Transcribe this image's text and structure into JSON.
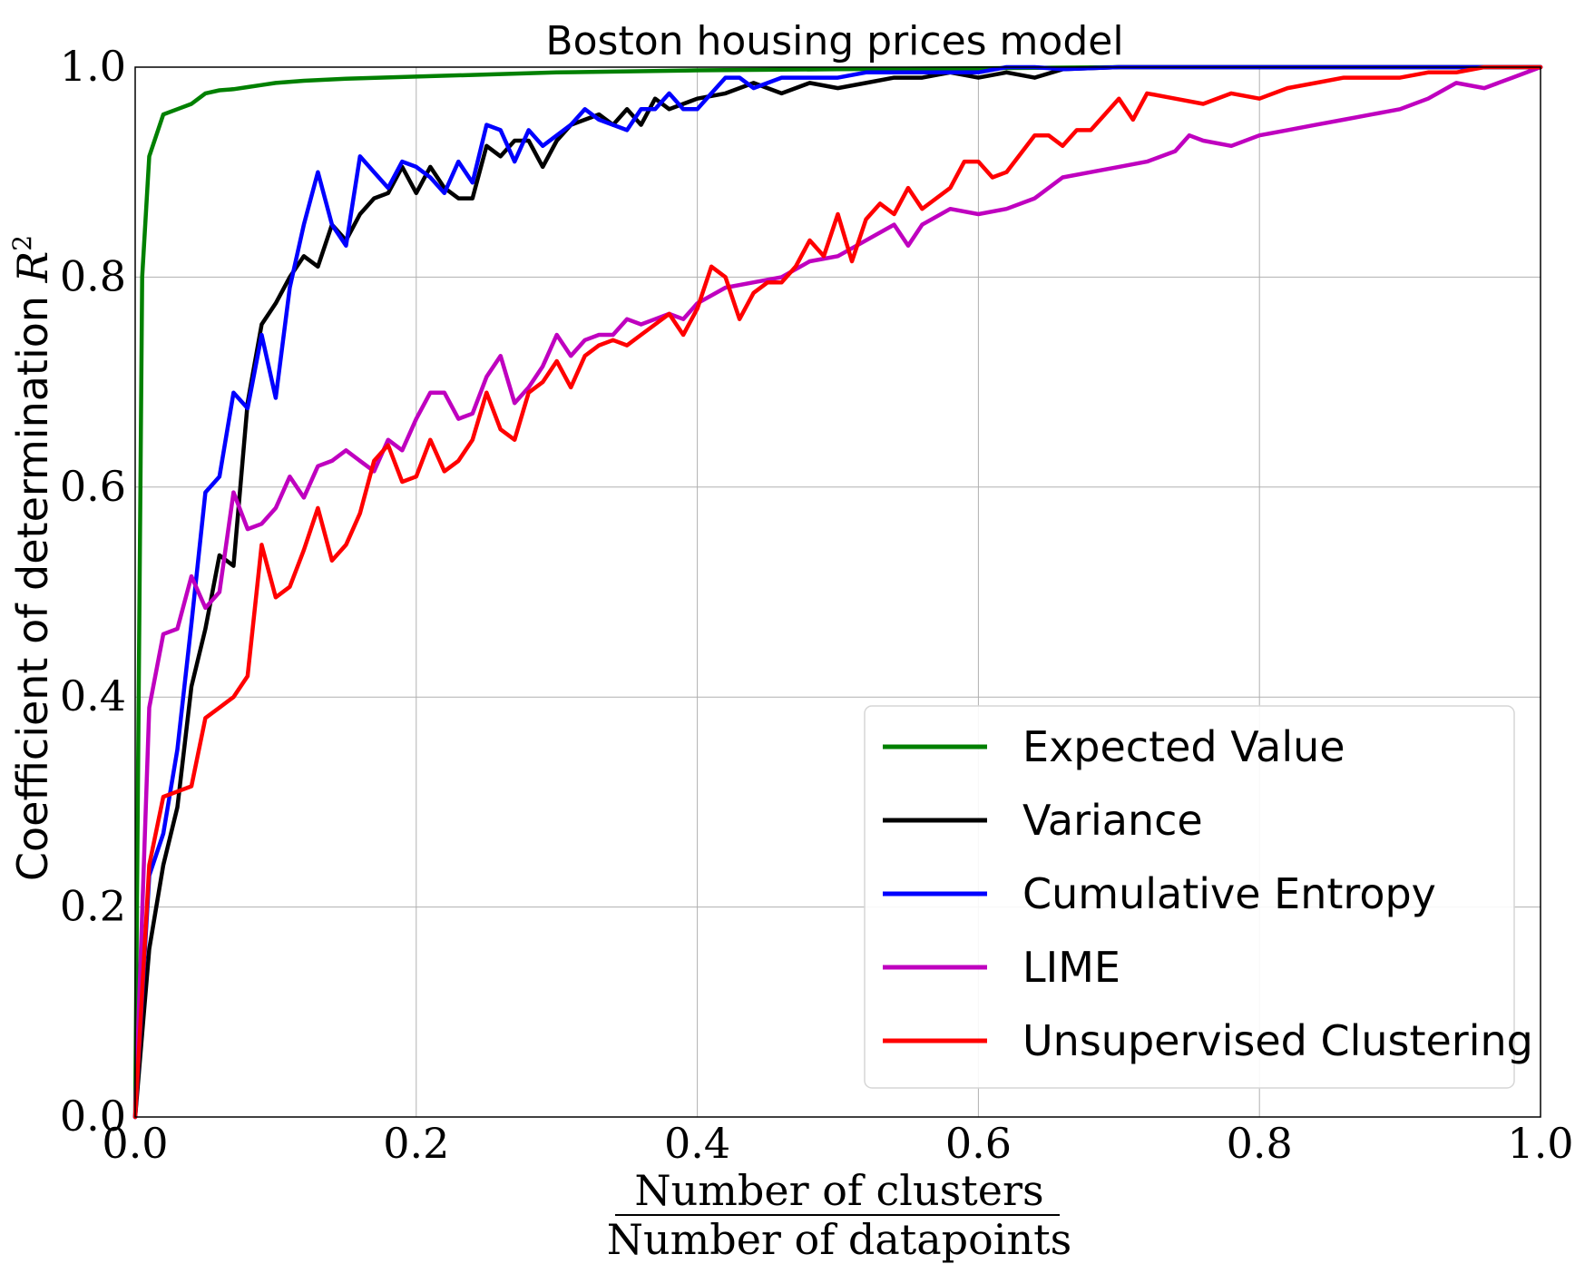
{
  "chart_data": {
    "type": "line",
    "title": "Boston housing prices model",
    "ylabel": "Coefficient of determination R²",
    "ylabel_text": "Coefficient of determination ",
    "ylabel_symbol": "R",
    "ylabel_sup": "2",
    "xlabel_numerator": "Number of clusters",
    "xlabel_denominator": "Number of datapoints",
    "xlim": [
      0.0,
      1.0
    ],
    "ylim": [
      0.0,
      1.0
    ],
    "xticks": [
      0.0,
      0.2,
      0.4,
      0.6,
      0.8,
      1.0
    ],
    "yticks": [
      0.0,
      0.2,
      0.4,
      0.6,
      0.8,
      1.0
    ],
    "xtick_labels": [
      "0.0",
      "0.2",
      "0.4",
      "0.6",
      "0.8",
      "1.0"
    ],
    "ytick_labels": [
      "0.0",
      "0.2",
      "0.4",
      "0.6",
      "0.8",
      "1.0"
    ],
    "grid": true,
    "legend_position": "lower-right",
    "series": [
      {
        "name": "Expected Value",
        "color": "#008000",
        "x": [
          0.0,
          0.005,
          0.01,
          0.02,
          0.03,
          0.04,
          0.05,
          0.06,
          0.07,
          0.08,
          0.09,
          0.1,
          0.12,
          0.15,
          0.2,
          0.25,
          0.3,
          0.4,
          0.5,
          0.6,
          0.7,
          0.8,
          0.9,
          1.0
        ],
        "y": [
          0.0,
          0.8,
          0.915,
          0.955,
          0.96,
          0.965,
          0.975,
          0.978,
          0.979,
          0.981,
          0.983,
          0.985,
          0.987,
          0.989,
          0.991,
          0.993,
          0.995,
          0.997,
          0.998,
          0.999,
          1.0,
          1.0,
          1.0,
          1.0
        ]
      },
      {
        "name": "Variance",
        "color": "#000000",
        "x": [
          0.0,
          0.01,
          0.02,
          0.03,
          0.04,
          0.05,
          0.06,
          0.07,
          0.08,
          0.09,
          0.1,
          0.11,
          0.12,
          0.13,
          0.14,
          0.15,
          0.16,
          0.17,
          0.18,
          0.19,
          0.2,
          0.21,
          0.22,
          0.23,
          0.24,
          0.25,
          0.26,
          0.27,
          0.28,
          0.29,
          0.3,
          0.31,
          0.32,
          0.33,
          0.34,
          0.35,
          0.36,
          0.37,
          0.38,
          0.39,
          0.4,
          0.42,
          0.44,
          0.46,
          0.48,
          0.5,
          0.52,
          0.54,
          0.56,
          0.58,
          0.6,
          0.62,
          0.64,
          0.66,
          0.7,
          0.8,
          0.9,
          1.0
        ],
        "y": [
          0.0,
          0.16,
          0.24,
          0.295,
          0.41,
          0.465,
          0.535,
          0.525,
          0.68,
          0.755,
          0.775,
          0.8,
          0.82,
          0.81,
          0.85,
          0.835,
          0.86,
          0.875,
          0.88,
          0.905,
          0.88,
          0.905,
          0.885,
          0.875,
          0.875,
          0.925,
          0.915,
          0.93,
          0.93,
          0.905,
          0.93,
          0.945,
          0.95,
          0.955,
          0.945,
          0.96,
          0.945,
          0.97,
          0.96,
          0.965,
          0.97,
          0.975,
          0.985,
          0.975,
          0.985,
          0.98,
          0.985,
          0.99,
          0.99,
          0.995,
          0.99,
          0.995,
          0.99,
          0.998,
          1.0,
          1.0,
          1.0,
          1.0
        ]
      },
      {
        "name": "Cumulative Entropy",
        "color": "#0000ff",
        "x": [
          0.0,
          0.01,
          0.02,
          0.03,
          0.04,
          0.05,
          0.06,
          0.07,
          0.08,
          0.09,
          0.1,
          0.11,
          0.12,
          0.13,
          0.14,
          0.15,
          0.16,
          0.17,
          0.18,
          0.19,
          0.2,
          0.21,
          0.22,
          0.23,
          0.24,
          0.25,
          0.26,
          0.27,
          0.28,
          0.29,
          0.3,
          0.31,
          0.32,
          0.33,
          0.34,
          0.35,
          0.36,
          0.37,
          0.38,
          0.39,
          0.4,
          0.41,
          0.42,
          0.43,
          0.44,
          0.45,
          0.46,
          0.48,
          0.5,
          0.52,
          0.54,
          0.56,
          0.58,
          0.6,
          0.62,
          0.64,
          0.66,
          0.7,
          0.8,
          0.9,
          1.0
        ],
        "y": [
          0.0,
          0.23,
          0.27,
          0.35,
          0.47,
          0.595,
          0.61,
          0.69,
          0.675,
          0.745,
          0.685,
          0.79,
          0.85,
          0.9,
          0.85,
          0.83,
          0.915,
          0.9,
          0.885,
          0.91,
          0.905,
          0.895,
          0.88,
          0.91,
          0.89,
          0.945,
          0.94,
          0.91,
          0.94,
          0.925,
          0.935,
          0.945,
          0.96,
          0.95,
          0.945,
          0.94,
          0.96,
          0.96,
          0.975,
          0.96,
          0.96,
          0.975,
          0.99,
          0.99,
          0.98,
          0.985,
          0.99,
          0.99,
          0.99,
          0.995,
          0.995,
          0.995,
          0.995,
          0.995,
          1.0,
          1.0,
          0.998,
          1.0,
          1.0,
          1.0,
          1.0
        ]
      },
      {
        "name": "LIME",
        "color": "#bf00bf",
        "x": [
          0.0,
          0.01,
          0.02,
          0.03,
          0.04,
          0.05,
          0.06,
          0.07,
          0.08,
          0.09,
          0.1,
          0.11,
          0.12,
          0.13,
          0.14,
          0.15,
          0.16,
          0.17,
          0.18,
          0.19,
          0.2,
          0.21,
          0.22,
          0.23,
          0.24,
          0.25,
          0.26,
          0.27,
          0.28,
          0.29,
          0.3,
          0.31,
          0.32,
          0.33,
          0.34,
          0.35,
          0.36,
          0.37,
          0.38,
          0.39,
          0.4,
          0.42,
          0.44,
          0.46,
          0.48,
          0.5,
          0.52,
          0.54,
          0.55,
          0.56,
          0.58,
          0.6,
          0.62,
          0.64,
          0.66,
          0.68,
          0.7,
          0.72,
          0.74,
          0.75,
          0.76,
          0.78,
          0.8,
          0.82,
          0.84,
          0.86,
          0.88,
          0.9,
          0.92,
          0.94,
          0.96,
          0.98,
          1.0
        ],
        "y": [
          0.0,
          0.39,
          0.46,
          0.465,
          0.515,
          0.485,
          0.5,
          0.595,
          0.56,
          0.565,
          0.58,
          0.61,
          0.59,
          0.62,
          0.625,
          0.635,
          0.625,
          0.615,
          0.645,
          0.635,
          0.665,
          0.69,
          0.69,
          0.665,
          0.67,
          0.705,
          0.725,
          0.68,
          0.695,
          0.715,
          0.745,
          0.725,
          0.74,
          0.745,
          0.745,
          0.76,
          0.755,
          0.76,
          0.765,
          0.76,
          0.775,
          0.79,
          0.795,
          0.8,
          0.815,
          0.82,
          0.835,
          0.85,
          0.83,
          0.85,
          0.865,
          0.86,
          0.865,
          0.875,
          0.895,
          0.9,
          0.905,
          0.91,
          0.92,
          0.935,
          0.93,
          0.925,
          0.935,
          0.94,
          0.945,
          0.95,
          0.955,
          0.96,
          0.97,
          0.985,
          0.98,
          0.99,
          1.0
        ]
      },
      {
        "name": "Unsupervised Clustering",
        "color": "#ff0000",
        "x": [
          0.0,
          0.01,
          0.02,
          0.03,
          0.04,
          0.05,
          0.06,
          0.07,
          0.08,
          0.09,
          0.1,
          0.11,
          0.12,
          0.13,
          0.14,
          0.15,
          0.16,
          0.17,
          0.18,
          0.19,
          0.2,
          0.21,
          0.22,
          0.23,
          0.24,
          0.25,
          0.26,
          0.27,
          0.28,
          0.29,
          0.3,
          0.31,
          0.32,
          0.33,
          0.34,
          0.35,
          0.36,
          0.37,
          0.38,
          0.39,
          0.4,
          0.41,
          0.42,
          0.43,
          0.44,
          0.45,
          0.46,
          0.47,
          0.48,
          0.49,
          0.5,
          0.51,
          0.52,
          0.53,
          0.54,
          0.55,
          0.56,
          0.58,
          0.59,
          0.6,
          0.61,
          0.62,
          0.64,
          0.65,
          0.66,
          0.67,
          0.68,
          0.69,
          0.7,
          0.71,
          0.72,
          0.74,
          0.76,
          0.78,
          0.8,
          0.82,
          0.84,
          0.86,
          0.88,
          0.9,
          0.92,
          0.94,
          0.96,
          0.98,
          1.0
        ],
        "y": [
          0.0,
          0.24,
          0.305,
          0.31,
          0.315,
          0.38,
          0.39,
          0.4,
          0.42,
          0.545,
          0.495,
          0.505,
          0.54,
          0.58,
          0.53,
          0.545,
          0.575,
          0.625,
          0.64,
          0.605,
          0.61,
          0.645,
          0.615,
          0.625,
          0.645,
          0.69,
          0.655,
          0.645,
          0.69,
          0.7,
          0.72,
          0.695,
          0.725,
          0.735,
          0.74,
          0.735,
          0.745,
          0.755,
          0.765,
          0.745,
          0.77,
          0.81,
          0.8,
          0.76,
          0.785,
          0.795,
          0.795,
          0.81,
          0.835,
          0.82,
          0.86,
          0.815,
          0.855,
          0.87,
          0.86,
          0.885,
          0.865,
          0.885,
          0.91,
          0.91,
          0.895,
          0.9,
          0.935,
          0.935,
          0.925,
          0.94,
          0.94,
          0.955,
          0.97,
          0.95,
          0.975,
          0.97,
          0.965,
          0.975,
          0.97,
          0.98,
          0.985,
          0.99,
          0.99,
          0.99,
          0.995,
          0.995,
          1.0,
          1.0,
          1.0
        ]
      }
    ]
  }
}
